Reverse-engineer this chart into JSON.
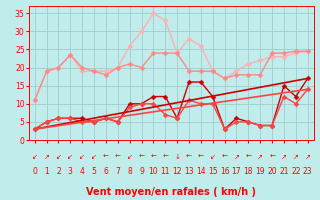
{
  "xlabel": "Vent moyen/en rafales ( km/h )",
  "xlim": [
    -0.5,
    23.5
  ],
  "ylim": [
    0,
    37
  ],
  "yticks": [
    0,
    5,
    10,
    15,
    20,
    25,
    30,
    35
  ],
  "xticks": [
    0,
    1,
    2,
    3,
    4,
    5,
    6,
    7,
    8,
    9,
    10,
    11,
    12,
    13,
    14,
    15,
    16,
    17,
    18,
    19,
    20,
    21,
    22,
    23
  ],
  "bg_color": "#c0ecec",
  "grid_color": "#a0cccc",
  "series": [
    {
      "x": [
        0,
        1,
        2,
        3,
        4,
        5,
        6,
        7,
        8,
        9,
        10,
        11,
        12,
        13,
        14,
        15,
        16,
        17,
        18,
        19,
        20,
        21,
        22,
        23
      ],
      "y": [
        11,
        19,
        20,
        23.5,
        19,
        19,
        19,
        20,
        26,
        30,
        35,
        33,
        24,
        28,
        26,
        19,
        17,
        19,
        21,
        22,
        23,
        23,
        24,
        24.5
      ],
      "color": "#ffb0b0",
      "lw": 1.0,
      "marker": "D",
      "ms": 2.5
    },
    {
      "x": [
        0,
        1,
        2,
        3,
        4,
        5,
        6,
        7,
        8,
        9,
        10,
        11,
        12,
        13,
        14,
        15,
        16,
        17,
        18,
        19,
        20,
        21,
        22,
        23
      ],
      "y": [
        11,
        19,
        20,
        23.5,
        20,
        19,
        18,
        20,
        21,
        20,
        24,
        24,
        24,
        19,
        19,
        19,
        17,
        18,
        18,
        18,
        24,
        24,
        24.5,
        24.5
      ],
      "color": "#ff8888",
      "lw": 1.0,
      "marker": "D",
      "ms": 2.5
    },
    {
      "x": [
        0,
        1,
        2,
        3,
        4,
        5,
        6,
        7,
        8,
        9,
        10,
        11,
        12,
        13,
        14,
        15,
        16,
        17,
        18,
        19,
        20,
        21,
        22,
        23
      ],
      "y": [
        3,
        5,
        6,
        6,
        6,
        5,
        6,
        5,
        10,
        10,
        12,
        12,
        6,
        16,
        16,
        12,
        3,
        6,
        5,
        4,
        4,
        15,
        12,
        17
      ],
      "color": "#cc0000",
      "lw": 1.0,
      "marker": "D",
      "ms": 2.5
    },
    {
      "x": [
        0,
        1,
        2,
        3,
        4,
        5,
        6,
        7,
        8,
        9,
        10,
        11,
        12,
        13,
        14,
        15,
        16,
        17,
        18,
        19,
        20,
        21,
        22,
        23
      ],
      "y": [
        3,
        5,
        6,
        6,
        5,
        5,
        6,
        5,
        9,
        10,
        10,
        7,
        6,
        11,
        10,
        10,
        3,
        5,
        5,
        4,
        4,
        12,
        10,
        14
      ],
      "color": "#ff4444",
      "lw": 1.0,
      "marker": "D",
      "ms": 2.5
    },
    {
      "x": [
        0,
        23
      ],
      "y": [
        3,
        17
      ],
      "color": "#cc0000",
      "lw": 1.2,
      "marker": null,
      "ms": 0
    },
    {
      "x": [
        0,
        23
      ],
      "y": [
        3,
        14
      ],
      "color": "#ff4444",
      "lw": 1.2,
      "marker": null,
      "ms": 0
    }
  ],
  "arrows": [
    "↙",
    "↗",
    "↙",
    "↙",
    "↙",
    "↙",
    "←",
    "←",
    "↙",
    "←",
    "←",
    "←",
    "↓",
    "←",
    "←",
    "↙",
    "←",
    "↗",
    "←",
    "↗",
    "←",
    "↗",
    "↗",
    "↗"
  ],
  "xlabel_fontsize": 7,
  "tick_fontsize": 5.5,
  "arrow_fontsize": 5
}
